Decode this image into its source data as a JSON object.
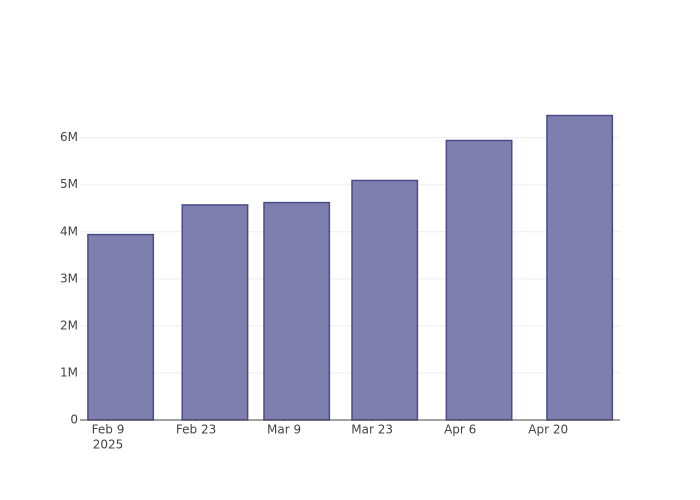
{
  "chart_data": {
    "type": "bar",
    "x": [
      "2025-02-11",
      "2025-02-26",
      "2025-03-11",
      "2025-03-25",
      "2025-04-09",
      "2025-04-25"
    ],
    "values": [
      3940000,
      4570000,
      4620000,
      5090000,
      5940000,
      6470000
    ],
    "color": "#7f7faf",
    "edge_color": "#4b4b8c",
    "xlim": [
      "2025-02-04T13:00",
      "2025-05-01T10:00"
    ],
    "xticks": [
      {
        "value": "2025-02-09",
        "label": "Feb 9"
      },
      {
        "value": "2025-02-23",
        "label": "Feb 23"
      },
      {
        "value": "2025-03-09",
        "label": "Mar 9"
      },
      {
        "value": "2025-03-23",
        "label": "Mar 23"
      },
      {
        "value": "2025-04-06",
        "label": "Apr 6"
      },
      {
        "value": "2025-04-20",
        "label": "Apr 20"
      }
    ],
    "x_year_label": "2025",
    "ylim": [
      0,
      6800000
    ],
    "yticks": [
      0,
      {
        "value": 1000000,
        "label": "1M"
      },
      {
        "value": 2000000,
        "label": "2M"
      },
      {
        "value": 3000000,
        "label": "3M"
      },
      {
        "value": 4000000,
        "label": "4M"
      },
      {
        "value": 5000000,
        "label": "5M"
      },
      {
        "value": 6000000,
        "label": "6M"
      }
    ],
    "grid": true
  }
}
